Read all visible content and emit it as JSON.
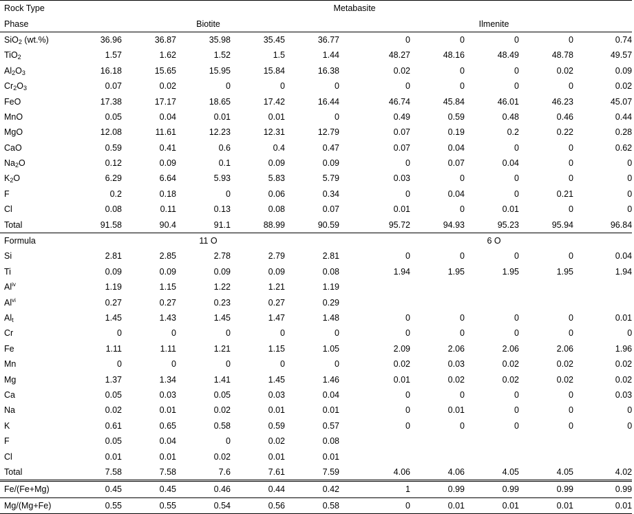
{
  "header": {
    "rock_type_label": "Rock Type",
    "rock_type_value": "Metabasite",
    "phase_label": "Phase",
    "biotite": "Biotite",
    "ilmenite": "Ilmenite",
    "formula_label": "Formula",
    "biotite_basis": "11 O",
    "ilmenite_basis": "6 O"
  },
  "oxides": [
    {
      "label": "SiO2 (wt.%)",
      "biotite": [
        "36.96",
        "36.87",
        "35.98",
        "35.45",
        "36.77"
      ],
      "ilmenite": [
        "0",
        "0",
        "0",
        "0",
        "0.74"
      ]
    },
    {
      "label": "TiO2",
      "biotite": [
        "1.57",
        "1.62",
        "1.52",
        "1.5",
        "1.44"
      ],
      "ilmenite": [
        "48.27",
        "48.16",
        "48.49",
        "48.78",
        "49.57"
      ]
    },
    {
      "label": "Al2O3",
      "biotite": [
        "16.18",
        "15.65",
        "15.95",
        "15.84",
        "16.38"
      ],
      "ilmenite": [
        "0.02",
        "0",
        "0",
        "0.02",
        "0.09"
      ]
    },
    {
      "label": "Cr2O3",
      "biotite": [
        "0.07",
        "0.02",
        "0",
        "0",
        "0"
      ],
      "ilmenite": [
        "0",
        "0",
        "0",
        "0",
        "0.02"
      ]
    },
    {
      "label": "FeO",
      "biotite": [
        "17.38",
        "17.17",
        "18.65",
        "17.42",
        "16.44"
      ],
      "ilmenite": [
        "46.74",
        "45.84",
        "46.01",
        "46.23",
        "45.07"
      ]
    },
    {
      "label": "MnO",
      "biotite": [
        "0.05",
        "0.04",
        "0.01",
        "0.01",
        "0"
      ],
      "ilmenite": [
        "0.49",
        "0.59",
        "0.48",
        "0.46",
        "0.44"
      ]
    },
    {
      "label": "MgO",
      "biotite": [
        "12.08",
        "11.61",
        "12.23",
        "12.31",
        "12.79"
      ],
      "ilmenite": [
        "0.07",
        "0.19",
        "0.2",
        "0.22",
        "0.28"
      ]
    },
    {
      "label": "CaO",
      "biotite": [
        "0.59",
        "0.41",
        "0.6",
        "0.4",
        "0.47"
      ],
      "ilmenite": [
        "0.07",
        "0.04",
        "0",
        "0",
        "0.62"
      ]
    },
    {
      "label": "Na2O",
      "biotite": [
        "0.12",
        "0.09",
        "0.1",
        "0.09",
        "0.09"
      ],
      "ilmenite": [
        "0",
        "0.07",
        "0.04",
        "0",
        "0"
      ]
    },
    {
      "label": "K2O",
      "biotite": [
        "6.29",
        "6.64",
        "5.93",
        "5.83",
        "5.79"
      ],
      "ilmenite": [
        "0.03",
        "0",
        "0",
        "0",
        "0"
      ]
    },
    {
      "label": "F",
      "biotite": [
        "0.2",
        "0.18",
        "0",
        "0.06",
        "0.34"
      ],
      "ilmenite": [
        "0",
        "0.04",
        "0",
        "0.21",
        "0"
      ]
    },
    {
      "label": "Cl",
      "biotite": [
        "0.08",
        "0.11",
        "0.13",
        "0.08",
        "0.07"
      ],
      "ilmenite": [
        "0.01",
        "0",
        "0.01",
        "0",
        "0"
      ]
    },
    {
      "label": "Total",
      "biotite": [
        "91.58",
        "90.4",
        "91.1",
        "88.99",
        "90.59"
      ],
      "ilmenite": [
        "95.72",
        "94.93",
        "95.23",
        "95.94",
        "96.84"
      ]
    }
  ],
  "formula": [
    {
      "label": "Si",
      "biotite": [
        "2.81",
        "2.85",
        "2.78",
        "2.79",
        "2.81"
      ],
      "ilmenite": [
        "0",
        "0",
        "0",
        "0",
        "0.04"
      ]
    },
    {
      "label": "Ti",
      "biotite": [
        "0.09",
        "0.09",
        "0.09",
        "0.09",
        "0.08"
      ],
      "ilmenite": [
        "1.94",
        "1.95",
        "1.95",
        "1.95",
        "1.94"
      ]
    },
    {
      "label": "Aliv",
      "biotite": [
        "1.19",
        "1.15",
        "1.22",
        "1.21",
        "1.19"
      ],
      "ilmenite": [
        "",
        "",
        "",
        "",
        ""
      ]
    },
    {
      "label": "Alvi",
      "biotite": [
        "0.27",
        "0.27",
        "0.23",
        "0.27",
        "0.29"
      ],
      "ilmenite": [
        "",
        "",
        "",
        "",
        ""
      ]
    },
    {
      "label": "Alt",
      "biotite": [
        "1.45",
        "1.43",
        "1.45",
        "1.47",
        "1.48"
      ],
      "ilmenite": [
        "0",
        "0",
        "0",
        "0",
        "0.01"
      ]
    },
    {
      "label": "Cr",
      "biotite": [
        "0",
        "0",
        "0",
        "0",
        "0"
      ],
      "ilmenite": [
        "0",
        "0",
        "0",
        "0",
        "0"
      ]
    },
    {
      "label": "Fe",
      "biotite": [
        "1.11",
        "1.11",
        "1.21",
        "1.15",
        "1.05"
      ],
      "ilmenite": [
        "2.09",
        "2.06",
        "2.06",
        "2.06",
        "1.96"
      ]
    },
    {
      "label": "Mn",
      "biotite": [
        "0",
        "0",
        "0",
        "0",
        "0"
      ],
      "ilmenite": [
        "0.02",
        "0.03",
        "0.02",
        "0.02",
        "0.02"
      ]
    },
    {
      "label": "Mg",
      "biotite": [
        "1.37",
        "1.34",
        "1.41",
        "1.45",
        "1.46"
      ],
      "ilmenite": [
        "0.01",
        "0.02",
        "0.02",
        "0.02",
        "0.02"
      ]
    },
    {
      "label": "Ca",
      "biotite": [
        "0.05",
        "0.03",
        "0.05",
        "0.03",
        "0.04"
      ],
      "ilmenite": [
        "0",
        "0",
        "0",
        "0",
        "0.03"
      ]
    },
    {
      "label": "Na",
      "biotite": [
        "0.02",
        "0.01",
        "0.02",
        "0.01",
        "0.01"
      ],
      "ilmenite": [
        "0",
        "0.01",
        "0",
        "0",
        "0"
      ]
    },
    {
      "label": "K",
      "biotite": [
        "0.61",
        "0.65",
        "0.58",
        "0.59",
        "0.57"
      ],
      "ilmenite": [
        "0",
        "0",
        "0",
        "0",
        "0"
      ]
    },
    {
      "label": "F",
      "biotite": [
        "0.05",
        "0.04",
        "0",
        "0.02",
        "0.08"
      ],
      "ilmenite": [
        "",
        "",
        "",
        "",
        ""
      ]
    },
    {
      "label": "Cl",
      "biotite": [
        "0.01",
        "0.01",
        "0.02",
        "0.01",
        "0.01"
      ],
      "ilmenite": [
        "",
        "",
        "",
        "",
        ""
      ]
    },
    {
      "label": "Total",
      "biotite": [
        "7.58",
        "7.58",
        "7.6",
        "7.61",
        "7.59"
      ],
      "ilmenite": [
        "4.06",
        "4.06",
        "4.05",
        "4.05",
        "4.02"
      ]
    }
  ],
  "ratios": [
    {
      "label": "Fe/(Fe+Mg)",
      "biotite": [
        "0.45",
        "0.45",
        "0.46",
        "0.44",
        "0.42"
      ],
      "ilmenite": [
        "1",
        "0.99",
        "0.99",
        "0.99",
        "0.99"
      ]
    },
    {
      "label": "Mg/(Mg+Fe)",
      "biotite": [
        "0.55",
        "0.55",
        "0.54",
        "0.56",
        "0.58"
      ],
      "ilmenite": [
        "0",
        "0.01",
        "0.01",
        "0.01",
        "0.01"
      ]
    }
  ]
}
